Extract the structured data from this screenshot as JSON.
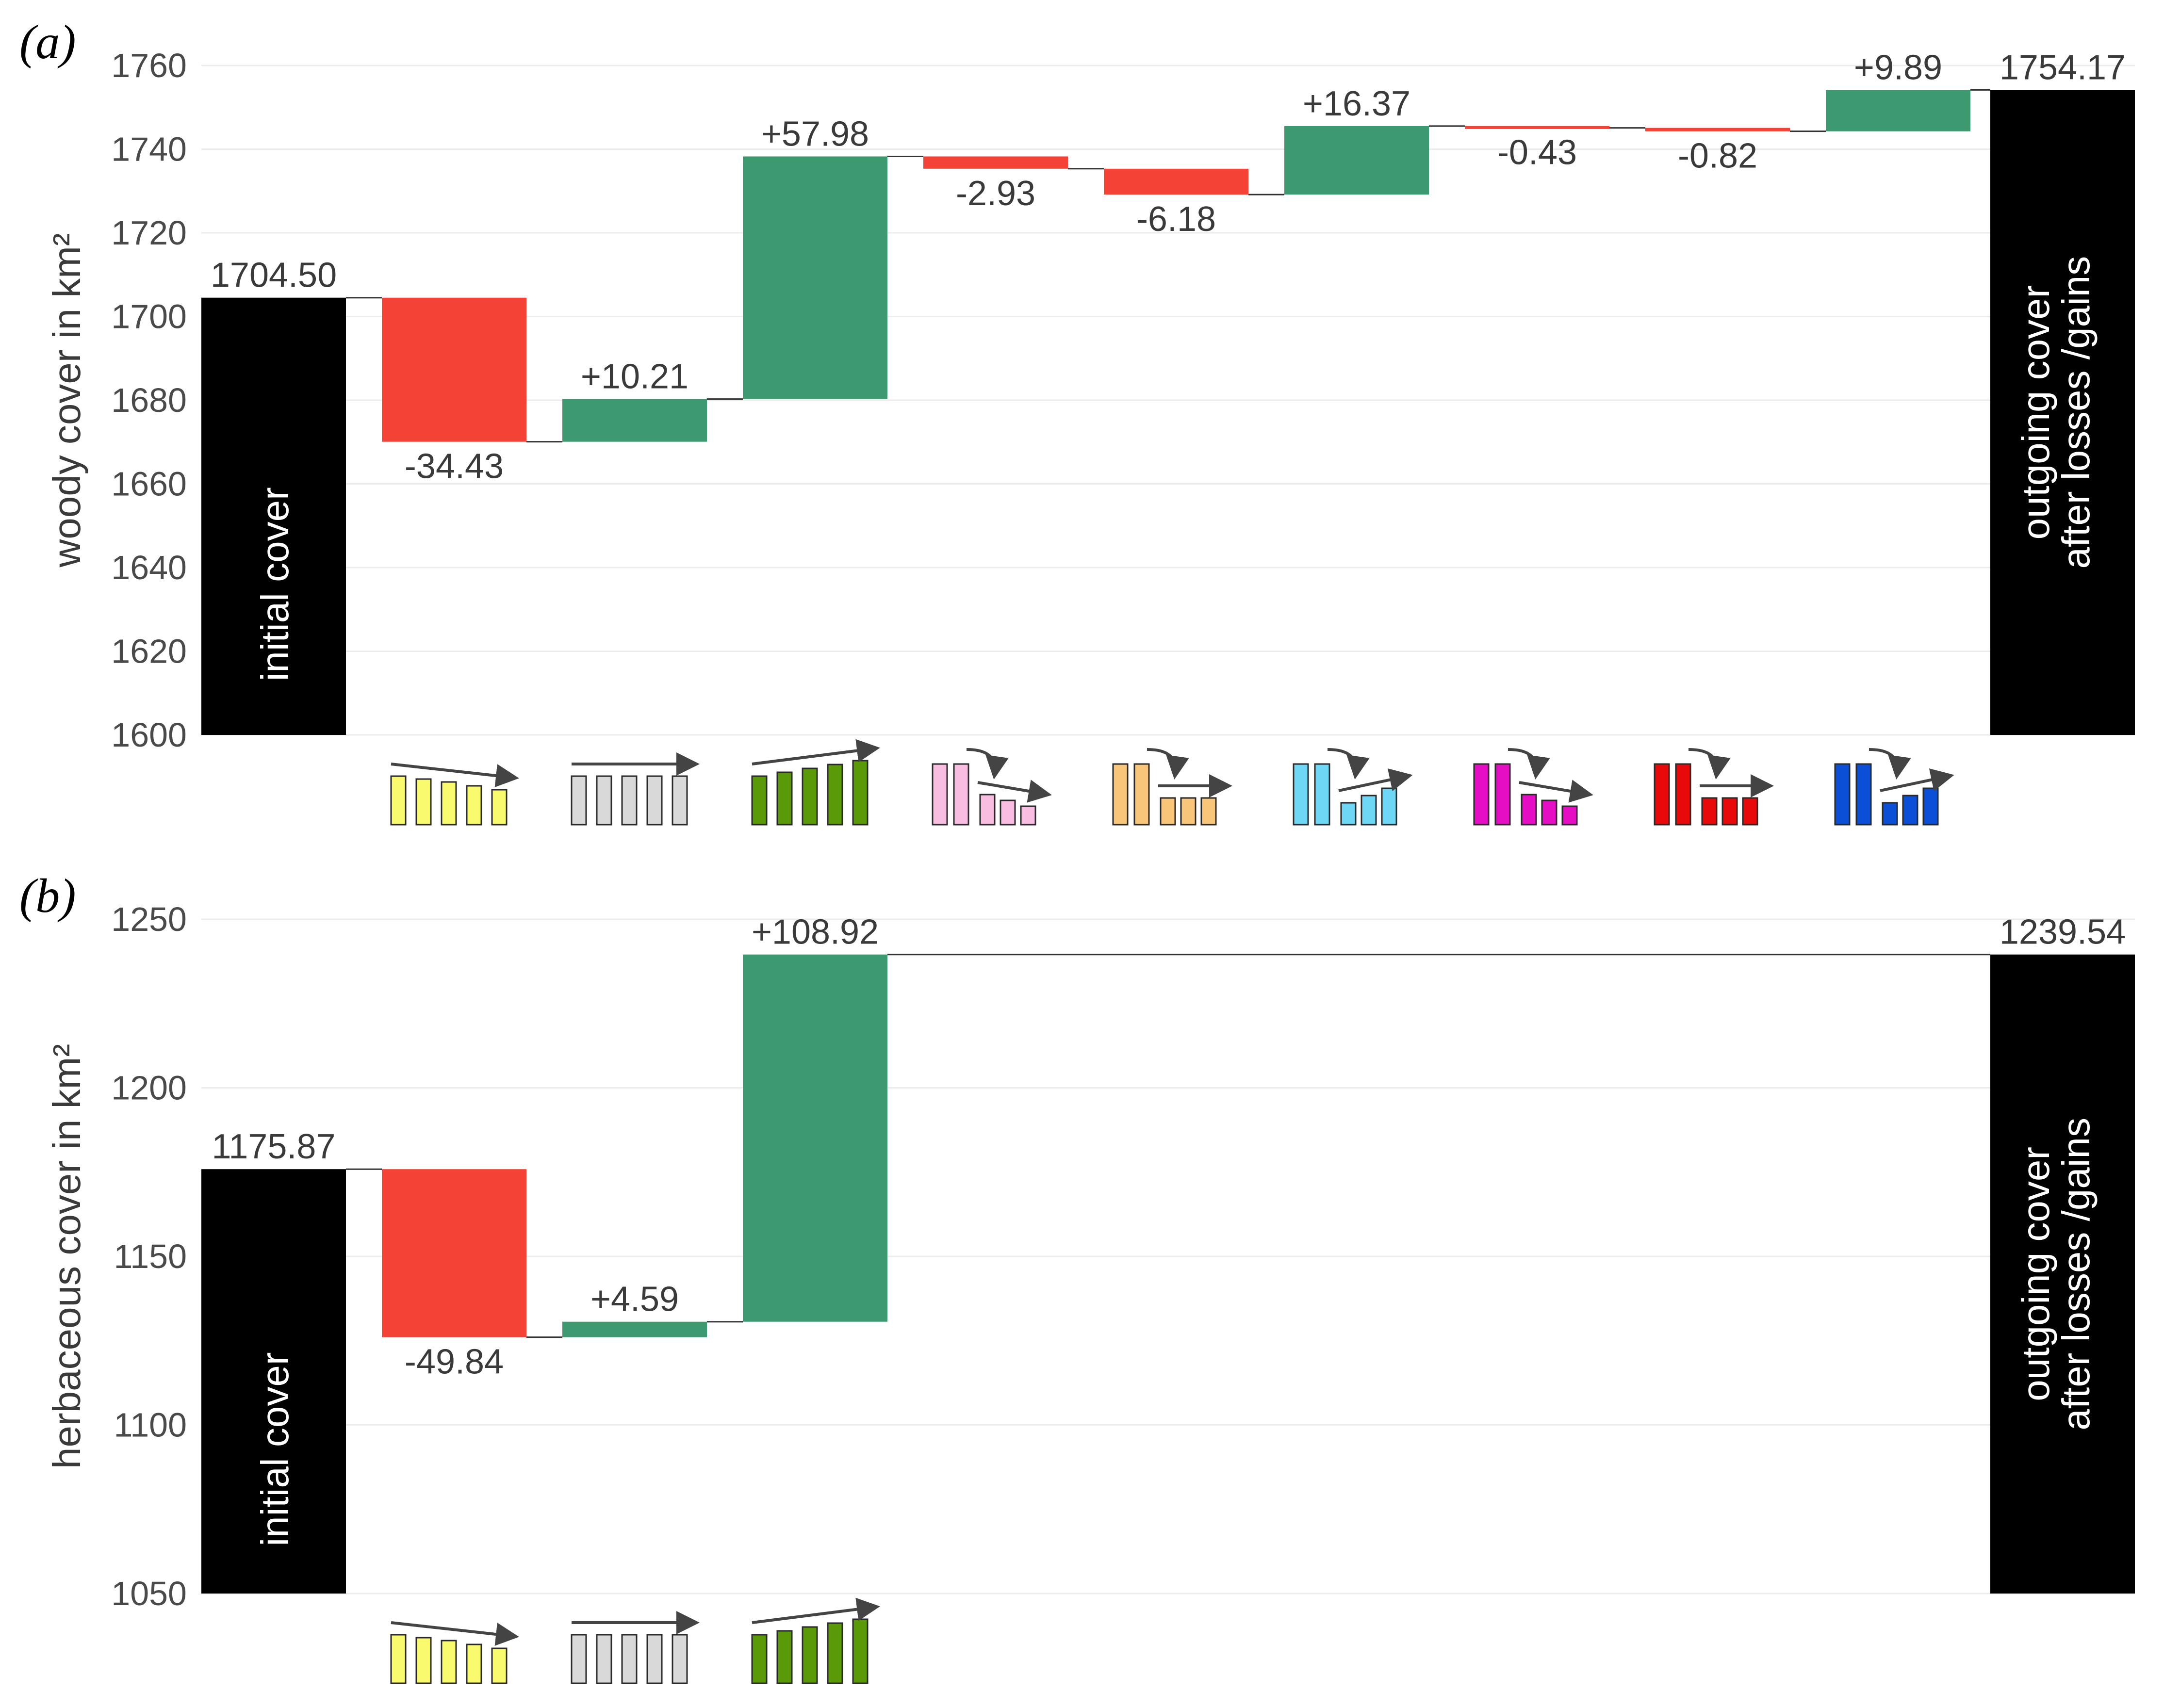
{
  "chart_data": [
    {
      "type": "waterfall",
      "panel_label": "(a)",
      "ylabel": "woody cover in km²",
      "ylim": [
        1600,
        1760
      ],
      "yticks": [
        "1760",
        "1740",
        "1720",
        "1700",
        "1680",
        "1660",
        "1640",
        "1620",
        "1600"
      ],
      "initial": {
        "value": 1704.5,
        "label": "1704.50",
        "bar_text": "initial cover"
      },
      "final": {
        "value": 1754.17,
        "label": "1754.17",
        "bar_text": [
          "outgoing cover",
          "after losses /gains"
        ]
      },
      "steps": [
        {
          "value": -34.43,
          "label": "-34.43",
          "icon": "declining-yellow"
        },
        {
          "value": 10.21,
          "label": "+10.21",
          "icon": "stable-grey"
        },
        {
          "value": 57.98,
          "label": "+57.98",
          "icon": "increasing-green"
        },
        {
          "value": -2.93,
          "label": "-2.93",
          "icon": "drop-then-declining-pink"
        },
        {
          "value": -6.18,
          "label": "-6.18",
          "icon": "drop-then-stable-orange"
        },
        {
          "value": 16.37,
          "label": "+16.37",
          "icon": "drop-then-increasing-cyan"
        },
        {
          "value": -0.43,
          "label": "-0.43",
          "icon": "drop-then-declining-magenta"
        },
        {
          "value": -0.82,
          "label": "-0.82",
          "icon": "drop-then-stable-red"
        },
        {
          "value": 9.89,
          "label": "+9.89",
          "icon": "drop-then-increasing-blue"
        }
      ]
    },
    {
      "type": "waterfall",
      "panel_label": "(b)",
      "ylabel": "herbaceous cover in km²",
      "ylim": [
        1050,
        1250
      ],
      "yticks": [
        "1250",
        "1200",
        "1150",
        "1100",
        "1050"
      ],
      "initial": {
        "value": 1175.87,
        "label": "1175.87",
        "bar_text": "initial cover"
      },
      "final": {
        "value": 1239.54,
        "label": "1239.54",
        "bar_text": [
          "outgoing cover",
          "after losses /gains"
        ]
      },
      "steps": [
        {
          "value": -49.84,
          "label": "-49.84",
          "icon": "declining-yellow"
        },
        {
          "value": 4.59,
          "label": "+4.59",
          "icon": "stable-grey"
        },
        {
          "value": 108.92,
          "label": "+108.92",
          "icon": "increasing-green"
        }
      ]
    }
  ],
  "colors": {
    "loss": "#f44336",
    "gain": "#3d9970",
    "total": "#000000",
    "grid": "#ececec",
    "connector": "#333333"
  },
  "icon_colors": {
    "declining-yellow": "#fafa6e",
    "stable-grey": "#d9d9d9",
    "increasing-green": "#5a9a08",
    "drop-then-declining-pink": "#f8bde0",
    "drop-then-stable-orange": "#f9c679",
    "drop-then-increasing-cyan": "#6fd7f6",
    "drop-then-declining-magenta": "#e60ec4",
    "drop-then-stable-red": "#e80a0a",
    "drop-then-increasing-blue": "#0a4fd6"
  }
}
